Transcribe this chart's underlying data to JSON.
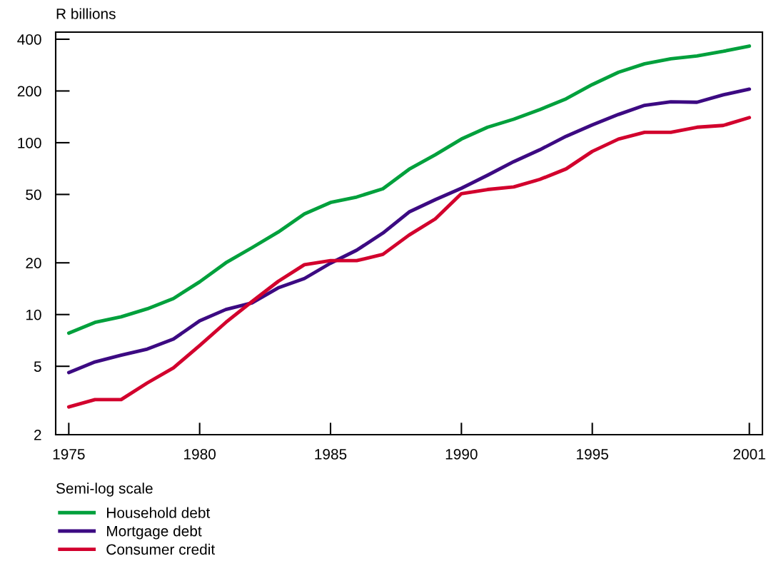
{
  "chart_data": {
    "type": "line",
    "ylabel": "R billions",
    "x": [
      1975,
      1976,
      1977,
      1978,
      1979,
      1980,
      1981,
      1982,
      1983,
      1984,
      1985,
      1986,
      1987,
      1988,
      1989,
      1990,
      1991,
      1992,
      1993,
      1994,
      1995,
      1996,
      1997,
      1998,
      1999,
      2000,
      2001
    ],
    "series": [
      {
        "name": "Household debt",
        "color": "#00a03c",
        "values": [
          7.8,
          9.0,
          9.7,
          10.8,
          12.4,
          15.5,
          20.0,
          24.5,
          30.2,
          38.5,
          44.9,
          48.3,
          53.9,
          70,
          85,
          105,
          123,
          137,
          156,
          180,
          218,
          257,
          288,
          308,
          320,
          340,
          365
        ]
      },
      {
        "name": "Mortgage debt",
        "color": "#3c0a82",
        "values": [
          4.6,
          5.3,
          5.8,
          6.3,
          7.2,
          9.2,
          10.7,
          11.7,
          14.3,
          16.2,
          19.9,
          23.7,
          29.8,
          39.5,
          46.6,
          54.3,
          64.7,
          77.6,
          91,
          109,
          127,
          146,
          165,
          173,
          172,
          190,
          205
        ]
      },
      {
        "name": "Consumer credit",
        "color": "#d2002d",
        "values": [
          2.9,
          3.2,
          3.2,
          4.0,
          4.9,
          6.6,
          9.0,
          11.9,
          15.6,
          19.5,
          20.6,
          20.6,
          22.4,
          29,
          36,
          50.5,
          53.4,
          55.3,
          61.2,
          70.4,
          89,
          105,
          115,
          115,
          123,
          126,
          140
        ]
      }
    ],
    "log": "y",
    "ylim": [
      2,
      440
    ],
    "yticks": [
      2,
      5,
      10,
      20,
      50,
      100,
      200,
      400
    ],
    "xlim": [
      1974.5,
      2001.5
    ],
    "xticks": [
      1975,
      1980,
      1985,
      1990,
      1995,
      2001
    ],
    "annotations": [
      "Semi-log scale"
    ],
    "legend": "bottom left",
    "grid": false,
    "marker": "none",
    "line_style": "solid"
  }
}
